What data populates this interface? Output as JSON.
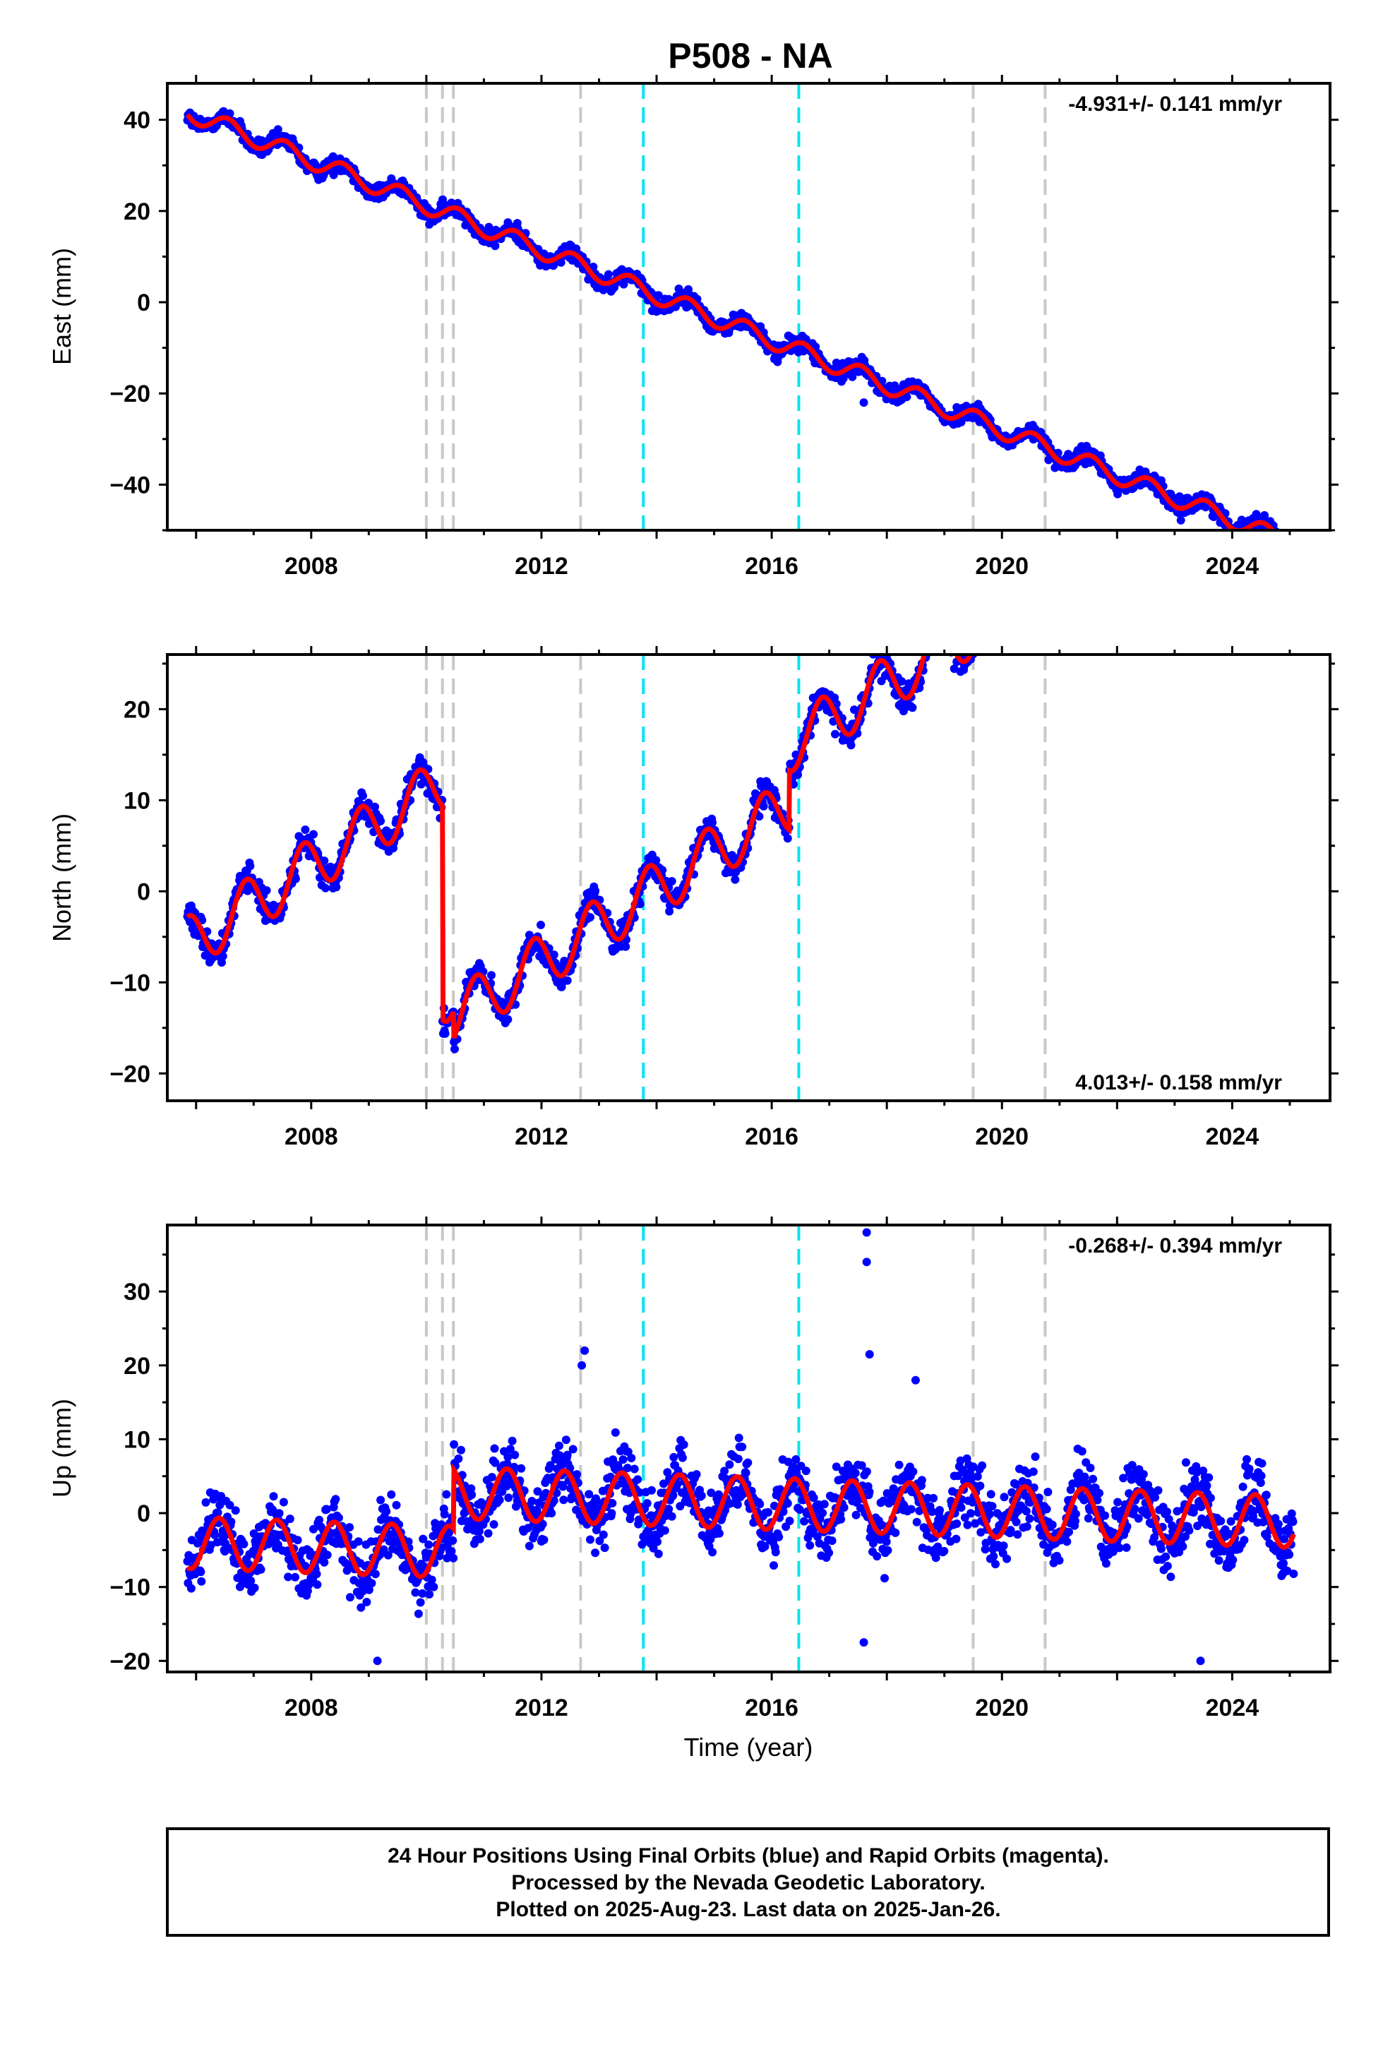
{
  "chart_data": {
    "title": "P508 - NA",
    "type": "scatter",
    "x_unit": "year",
    "xlim": [
      2005.5,
      2025.7
    ],
    "xticks": [
      2008,
      2012,
      2016,
      2020,
      2024
    ],
    "xlabel": "Time (year)",
    "colors": {
      "final_orbits": "#0000ff",
      "model_fit": "#ff0000",
      "event_gray": "#c8c8c8",
      "event_cyan": "#00e5ee"
    },
    "event_lines_gray": [
      2010.0,
      2010.28,
      2010.47,
      2012.68,
      2019.5,
      2020.75
    ],
    "event_lines_cyan": [
      2013.77,
      2016.47
    ],
    "panels": [
      {
        "id": "east",
        "ylabel": "East (mm)",
        "ylim": [
          -50,
          48
        ],
        "yticks": [
          -40,
          -20,
          0,
          20,
          40
        ],
        "rate_label": "-4.931+/- 0.141 mm/yr",
        "rate_position": "top-right",
        "trend": {
          "t0": 2005.8,
          "y0": 42.0,
          "rate": -4.931,
          "annual_amplitude": 2.0,
          "annual_phase": 0.3,
          "steps": [],
          "noise": 1.3
        },
        "outliers": [
          {
            "x": 2017.6,
            "y": -22
          },
          {
            "x": 2016.2,
            "y": -10
          }
        ]
      },
      {
        "id": "north",
        "ylabel": "North (mm)",
        "ylim": [
          -23,
          26
        ],
        "yticks": [
          -20,
          -10,
          0,
          10,
          20
        ],
        "rate_label": "4.013+/- 0.158 mm/yr",
        "rate_position": "bottom-right",
        "trend": {
          "t0": 2005.8,
          "y0": -6.0,
          "rate": 4.0,
          "annual_amplitude": 3.0,
          "annual_phase": 0.62,
          "steps": [
            {
              "t": 2010.28,
              "dy": -23.5
            },
            {
              "t": 2010.47,
              "dy": -3.0
            },
            {
              "t": 2016.3,
              "dy": 6.5
            }
          ],
          "noise": 1.1
        },
        "outliers": []
      },
      {
        "id": "up",
        "ylabel": "Up (mm)",
        "ylim": [
          -21.5,
          39
        ],
        "yticks": [
          -20,
          -10,
          0,
          10,
          20,
          30
        ],
        "rate_label": "-0.268+/- 0.394 mm/yr",
        "rate_position": "top-right",
        "trend": {
          "t0": 2005.8,
          "y0": -4.0,
          "rate": -0.268,
          "annual_amplitude": 3.5,
          "annual_phase": 0.15,
          "steps": [
            {
              "t": 2010.47,
              "dy": 8.0
            }
          ],
          "noise": 3.2
        },
        "outliers": [
          {
            "x": 2017.65,
            "y": 38
          },
          {
            "x": 2017.65,
            "y": 34
          },
          {
            "x": 2017.7,
            "y": 21.5
          },
          {
            "x": 2012.75,
            "y": 22
          },
          {
            "x": 2012.7,
            "y": 20
          },
          {
            "x": 2018.5,
            "y": 18
          },
          {
            "x": 2017.6,
            "y": -17.5
          },
          {
            "x": 2023.45,
            "y": -20
          },
          {
            "x": 2009.15,
            "y": -20
          }
        ]
      }
    ]
  },
  "footer": {
    "line1": "24 Hour Positions Using Final Orbits (blue) and Rapid Orbits (magenta).",
    "line2": "Processed by the Nevada Geodetic Laboratory.",
    "line3": "Plotted on 2025-Aug-23. Last data on 2025-Jan-26."
  }
}
